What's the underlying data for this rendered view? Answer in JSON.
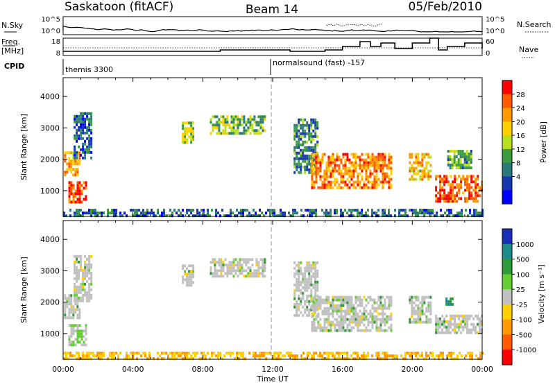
{
  "header": {
    "station": "Saskatoon (fitACF)",
    "beam": "Beam 14",
    "date": "05/Feb/2010"
  },
  "noise_panel": {
    "left_label": "N.Sky",
    "right_label": "N.Search",
    "left_ticks": [
      "10^5",
      "10^0"
    ],
    "right_ticks": [
      "10^5",
      "10^0"
    ]
  },
  "freq_panel": {
    "left_label_1": "Freq.",
    "left_label_2": "[MHz]",
    "right_label": "Nave",
    "left_ticks": [
      "18",
      "8"
    ],
    "right_ticks": [
      "60",
      "0"
    ]
  },
  "cpid": {
    "label": "CPID",
    "programs": [
      {
        "name": "themis 3300"
      },
      {
        "name": "normalsound (fast) -157"
      }
    ]
  },
  "time_axis": {
    "label": "Time UT",
    "ticks": [
      "00:00",
      "04:00",
      "08:00",
      "12:00",
      "16:00",
      "20:00",
      "00:00"
    ]
  },
  "chart_data": [
    {
      "type": "heatmap",
      "name": "power",
      "xlabel": "Time UT",
      "ylabel": "Slant Range [km]",
      "xlim_hours": [
        0,
        24
      ],
      "ylim_km": [
        180,
        4600
      ],
      "yticks": [
        "1000",
        "2000",
        "3000",
        "4000"
      ],
      "colorbar": {
        "label": "Power [dB]",
        "ticks": [
          "28",
          "24",
          "20",
          "16",
          "12",
          "8",
          "4"
        ],
        "colors": [
          "#ff0000",
          "#ff5a00",
          "#ff9a00",
          "#ffd000",
          "#b8e01c",
          "#3c9a3c",
          "#2a7a7a",
          "#1838b0",
          "#0000ff"
        ]
      },
      "echo_regions": [
        {
          "t0": 0.05,
          "t1": 0.9,
          "r0": 1500,
          "r1": 2250,
          "value_db": 20
        },
        {
          "t0": 0.3,
          "t1": 1.3,
          "r0": 650,
          "r1": 1300,
          "value_db": 26
        },
        {
          "t0": 0.6,
          "t1": 1.6,
          "r0": 2000,
          "r1": 3500,
          "value_db": 6
        },
        {
          "t0": 6.8,
          "t1": 7.5,
          "r0": 2500,
          "r1": 3200,
          "value_db": 14
        },
        {
          "t0": 8.4,
          "t1": 11.5,
          "r0": 2800,
          "r1": 3400,
          "value_db": 12
        },
        {
          "t0": 13.2,
          "t1": 14.6,
          "r0": 1600,
          "r1": 3300,
          "value_db": 8
        },
        {
          "t0": 14.2,
          "t1": 18.8,
          "r0": 1100,
          "r1": 2200,
          "value_db": 22
        },
        {
          "t0": 19.8,
          "t1": 21.0,
          "r0": 1400,
          "r1": 2200,
          "value_db": 18
        },
        {
          "t0": 21.3,
          "t1": 24.0,
          "r0": 700,
          "r1": 1500,
          "value_db": 24
        },
        {
          "t0": 22.0,
          "t1": 23.4,
          "r0": 1700,
          "r1": 2300,
          "value_db": 10
        },
        {
          "t0": 0.0,
          "t1": 24.0,
          "r0": 180,
          "r1": 420,
          "value_db": 6
        }
      ]
    },
    {
      "type": "heatmap",
      "name": "velocity",
      "xlabel": "Time UT",
      "ylabel": "Slant Range [km]",
      "xlim_hours": [
        0,
        24
      ],
      "ylim_km": [
        180,
        4600
      ],
      "yticks": [
        "1000",
        "2000",
        "3000",
        "4000"
      ],
      "colorbar": {
        "label": "Velocity [m s⁻¹]",
        "ticks": [
          "1000",
          "500",
          "100",
          "25",
          "-25",
          "-100",
          "-500",
          "-1000"
        ],
        "colors": [
          "#1a2fb8",
          "#1f8a8a",
          "#2e9a3a",
          "#66cc33",
          "#c0c0c0",
          "#ffd000",
          "#ff9a00",
          "#ff5a00",
          "#ff0000"
        ]
      },
      "echo_regions": [
        {
          "t0": 0.05,
          "t1": 0.9,
          "r0": 1500,
          "r1": 2250,
          "value_ms": 0
        },
        {
          "t0": 0.3,
          "t1": 1.3,
          "r0": 650,
          "r1": 1300,
          "value_ms": 80
        },
        {
          "t0": 0.6,
          "t1": 1.6,
          "r0": 2000,
          "r1": 3500,
          "value_ms": 0
        },
        {
          "t0": 6.8,
          "t1": 7.5,
          "r0": 2500,
          "r1": 3200,
          "value_ms": 0
        },
        {
          "t0": 8.4,
          "t1": 11.5,
          "r0": 2800,
          "r1": 3400,
          "value_ms": 0
        },
        {
          "t0": 13.2,
          "t1": 14.6,
          "r0": 1600,
          "r1": 3300,
          "value_ms": 0
        },
        {
          "t0": 14.2,
          "t1": 18.8,
          "r0": 1100,
          "r1": 2200,
          "value_ms": 0
        },
        {
          "t0": 19.8,
          "t1": 21.0,
          "r0": 1400,
          "r1": 2200,
          "value_ms": 0
        },
        {
          "t0": 21.3,
          "t1": 24.0,
          "r0": 1000,
          "r1": 1600,
          "value_ms": 0
        },
        {
          "t0": 21.9,
          "t1": 22.3,
          "r0": 1950,
          "r1": 2150,
          "value_ms": 300
        },
        {
          "t0": 0.0,
          "t1": 24.0,
          "r0": 180,
          "r1": 420,
          "value_ms": -70
        }
      ]
    }
  ]
}
